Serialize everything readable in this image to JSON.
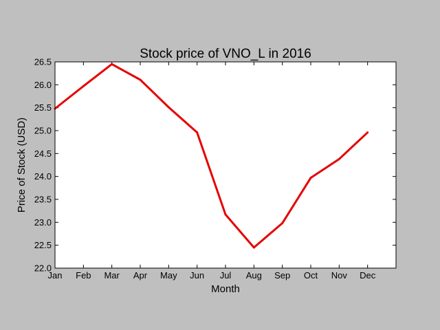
{
  "chart_data": {
    "type": "line",
    "title": "Stock price of VNO_L in 2016",
    "xlabel": "Month",
    "ylabel": "Price of Stock (USD)",
    "categories": [
      "Jan",
      "Feb",
      "Mar",
      "Apr",
      "May",
      "Jun",
      "Jul",
      "Aug",
      "Sep",
      "Oct",
      "Nov",
      "Dec"
    ],
    "series": [
      {
        "values": [
          25.48,
          25.97,
          26.45,
          26.11,
          25.51,
          24.96,
          23.17,
          22.45,
          22.98,
          23.97,
          24.38,
          24.96
        ],
        "color": "#e60000"
      }
    ],
    "ylim": [
      22.0,
      26.5
    ],
    "yticks": [
      "22.0",
      "22.5",
      "23.0",
      "23.5",
      "24.0",
      "24.5",
      "25.0",
      "25.5",
      "26.0",
      "26.5"
    ],
    "grid": false,
    "legend": "none"
  }
}
